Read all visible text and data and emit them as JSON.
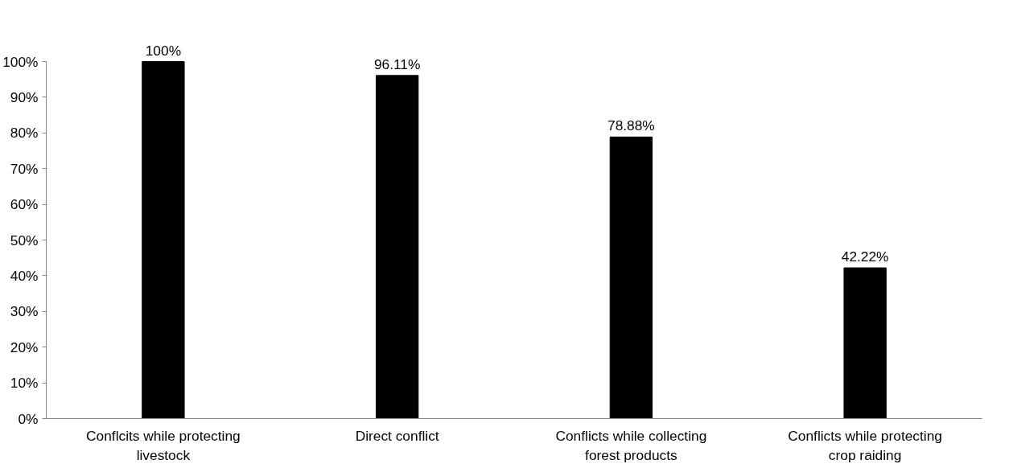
{
  "chart_data": {
    "type": "bar",
    "categories": [
      "Conflcits while protecting livestock",
      "Direct conflict",
      "Conflicts while collecting forest products",
      "Conflicts while protecting crop raiding"
    ],
    "values": [
      100,
      96.11,
      78.88,
      42.22
    ],
    "color": "#000000",
    "value_labels": [
      "100%",
      "96.11%",
      "78.88%",
      "42.22%"
    ],
    "ylim": [
      0,
      100
    ],
    "yticks": [
      {
        "value": 0,
        "label": "0%"
      },
      {
        "value": 10,
        "label": "10%"
      },
      {
        "value": 20,
        "label": "20%"
      },
      {
        "value": 30,
        "label": "30%"
      },
      {
        "value": 40,
        "label": "40%"
      },
      {
        "value": 50,
        "label": "50%"
      },
      {
        "value": 60,
        "label": "60%"
      },
      {
        "value": 70,
        "label": "70%"
      },
      {
        "value": 80,
        "label": "80%"
      },
      {
        "value": 90,
        "label": "90%"
      },
      {
        "value": 100,
        "label": "100%"
      }
    ],
    "grid": false
  }
}
